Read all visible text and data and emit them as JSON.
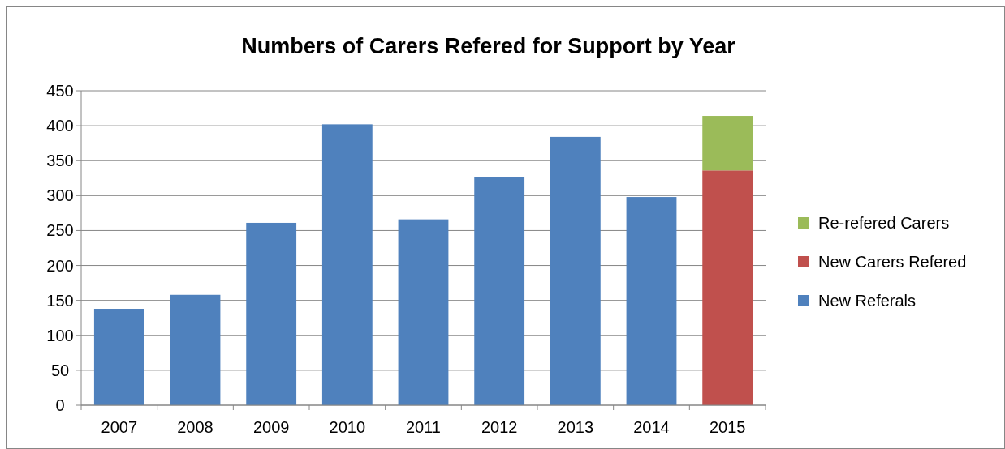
{
  "chart_data": {
    "type": "bar",
    "title": "Numbers of Carers Refered for Support by Year",
    "categories": [
      "2007",
      "2008",
      "2009",
      "2010",
      "2011",
      "2012",
      "2013",
      "2014",
      "2015"
    ],
    "series": [
      {
        "name": "New Referals",
        "color": "#4f81bd",
        "values": [
          138,
          158,
          261,
          402,
          266,
          326,
          384,
          298,
          null
        ]
      },
      {
        "name": "New Carers Refered",
        "color": "#c0504d",
        "values": [
          null,
          null,
          null,
          null,
          null,
          null,
          null,
          null,
          336
        ]
      },
      {
        "name": "Re-refered Carers",
        "color": "#9bbb59",
        "values": [
          null,
          null,
          null,
          null,
          null,
          null,
          null,
          null,
          78
        ]
      }
    ],
    "stacked": true,
    "ylim": [
      0,
      450
    ],
    "yticks": [
      0,
      50,
      100,
      150,
      200,
      250,
      300,
      350,
      400,
      450
    ],
    "grid": "y",
    "legend": "right"
  }
}
